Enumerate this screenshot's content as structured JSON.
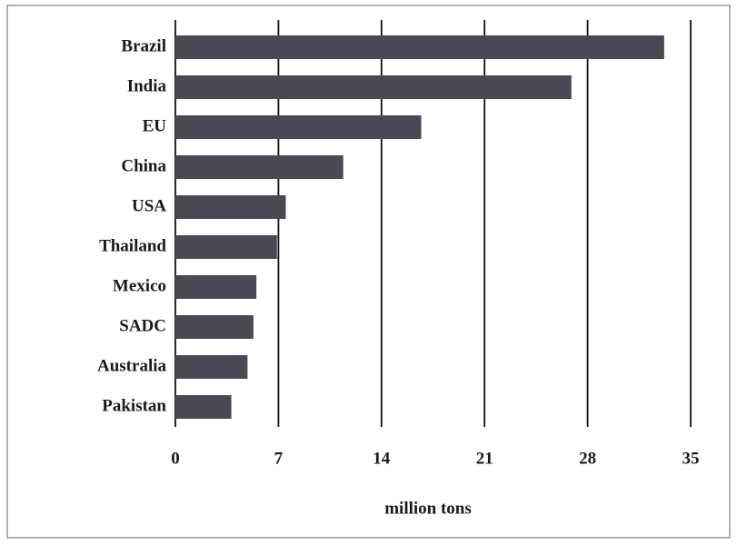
{
  "chart_data": {
    "type": "hbar",
    "categories": [
      "Brazil",
      "India",
      "EU",
      "China",
      "USA",
      "Thailand",
      "Mexico",
      "SADC",
      "Australia",
      "Pakistan"
    ],
    "values": [
      33.2,
      26.9,
      16.7,
      11.4,
      7.5,
      6.9,
      5.5,
      5.3,
      4.9,
      3.8
    ],
    "color": "#4a4852",
    "xlabel": "million tons",
    "xlim": [
      0,
      35
    ],
    "xticks": [
      0,
      7,
      14,
      21,
      28,
      35
    ],
    "grid": true
  }
}
